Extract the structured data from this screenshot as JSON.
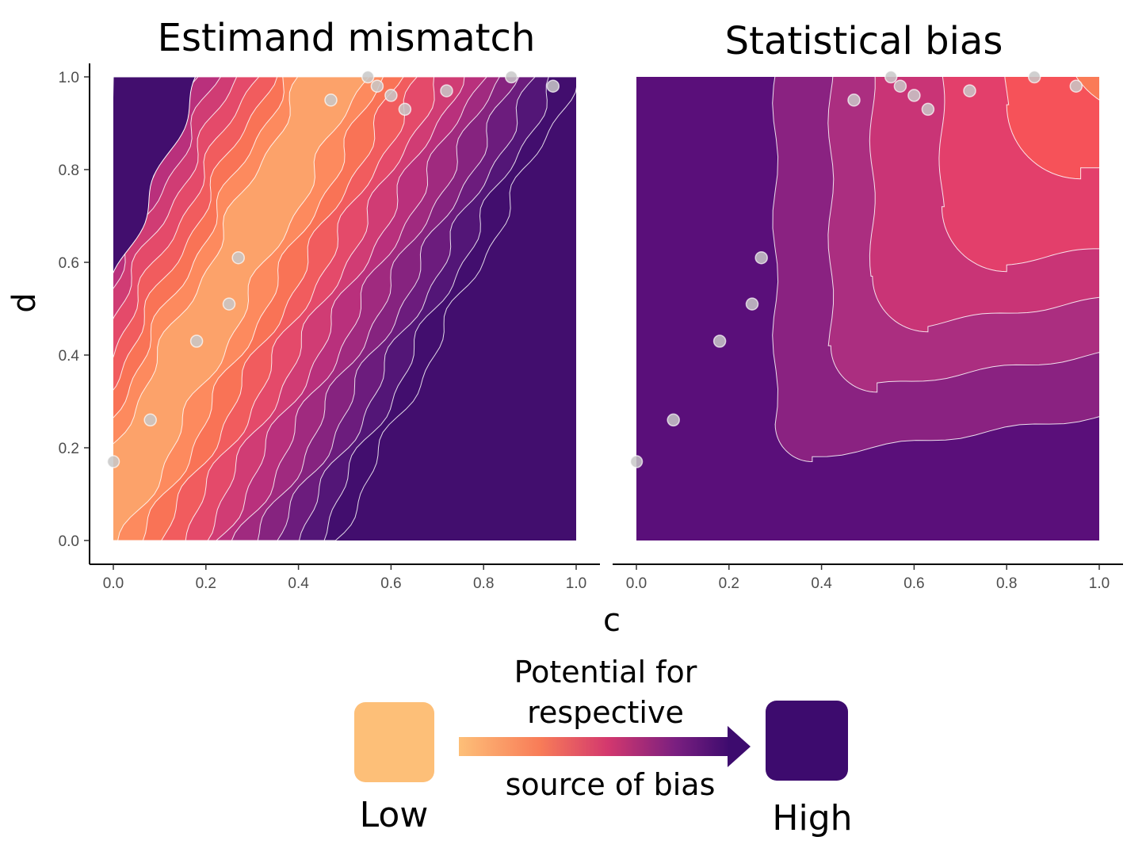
{
  "chart_data": [
    {
      "type": "heatmap",
      "title": "Estimand mismatch",
      "xlabel": "c",
      "ylabel": "d",
      "xlim": [
        0,
        1
      ],
      "ylim": [
        0,
        1
      ],
      "xticks": [
        "0.0",
        "0.2",
        "0.4",
        "0.6",
        "0.8",
        "1.0"
      ],
      "yticks": [
        "0.0",
        "0.2",
        "0.4",
        "0.6",
        "0.8",
        "1.0"
      ],
      "contour_bands": 11,
      "points": [
        {
          "c": 0.0,
          "d": 0.17
        },
        {
          "c": 0.08,
          "d": 0.26
        },
        {
          "c": 0.18,
          "d": 0.43
        },
        {
          "c": 0.25,
          "d": 0.51
        },
        {
          "c": 0.27,
          "d": 0.61
        },
        {
          "c": 0.47,
          "d": 0.95
        },
        {
          "c": 0.55,
          "d": 1.0
        },
        {
          "c": 0.57,
          "d": 0.98
        },
        {
          "c": 0.6,
          "d": 0.96
        },
        {
          "c": 0.63,
          "d": 0.93
        },
        {
          "c": 0.72,
          "d": 0.97
        },
        {
          "c": 0.86,
          "d": 1.0
        },
        {
          "c": 0.95,
          "d": 0.98
        }
      ]
    },
    {
      "type": "heatmap",
      "title": "Statistical bias",
      "xlabel": "c",
      "ylabel": "d",
      "xlim": [
        0,
        1
      ],
      "ylim": [
        0,
        1
      ],
      "xticks": [
        "0.0",
        "0.2",
        "0.4",
        "0.6",
        "0.8",
        "1.0"
      ],
      "yticks": [],
      "contour_bands": 6,
      "points": [
        {
          "c": 0.0,
          "d": 0.17
        },
        {
          "c": 0.08,
          "d": 0.26
        },
        {
          "c": 0.18,
          "d": 0.43
        },
        {
          "c": 0.25,
          "d": 0.51
        },
        {
          "c": 0.27,
          "d": 0.61
        },
        {
          "c": 0.47,
          "d": 0.95
        },
        {
          "c": 0.55,
          "d": 1.0
        },
        {
          "c": 0.57,
          "d": 0.98
        },
        {
          "c": 0.6,
          "d": 0.96
        },
        {
          "c": 0.63,
          "d": 0.93
        },
        {
          "c": 0.72,
          "d": 0.97
        },
        {
          "c": 0.86,
          "d": 1.0
        },
        {
          "c": 0.95,
          "d": 0.98
        }
      ]
    }
  ],
  "legend": {
    "text_line1": "Potential for",
    "text_line2": "respective",
    "text_line3": "source of bias",
    "low_label": "Low",
    "high_label": "High",
    "low_color": "#fdbf78",
    "high_color": "#3d0b6e"
  },
  "colors": {
    "palette": [
      "#fcbc76",
      "#fca26a",
      "#fd8a5e",
      "#f97356",
      "#f15c5e",
      "#e44a6a",
      "#d03c74",
      "#b9307c",
      "#a02a7f",
      "#86237f",
      "#6c1c7d",
      "#531677",
      "#420e6e"
    ]
  }
}
